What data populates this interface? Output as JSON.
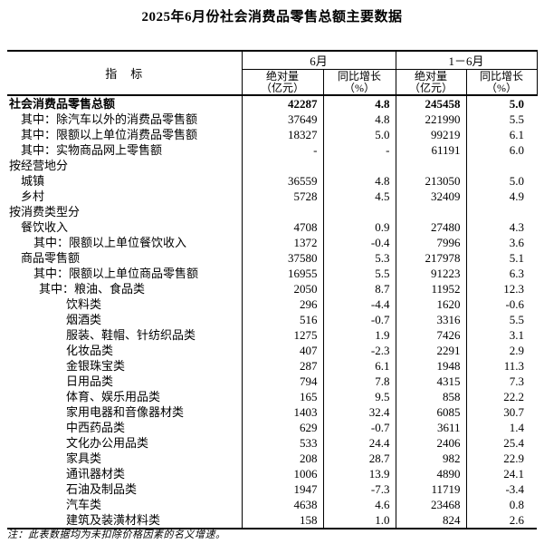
{
  "page": {
    "title": "2025年6月份社会消费品零售总额主要数据"
  },
  "table": {
    "header": {
      "indicator": "指　标",
      "group_june": "6月",
      "group_jan_june": "1－6月",
      "abs_label": "绝对量\n（亿元）",
      "yoy_label": "同比增长\n（%）"
    },
    "rows": [
      {
        "label": "社会消费品零售总额",
        "indent": 0,
        "bold": true,
        "values": [
          "42287",
          "4.8",
          "245458",
          "5.0"
        ]
      },
      {
        "label": "其中：除汽车以外的消费品零售额",
        "indent": 1,
        "bold": false,
        "values": [
          "37649",
          "4.8",
          "221990",
          "5.5"
        ]
      },
      {
        "label": "其中：限额以上单位消费品零售额",
        "indent": 1,
        "bold": false,
        "values": [
          "18327",
          "5.0",
          "99219",
          "6.1"
        ]
      },
      {
        "label": "其中：实物商品网上零售额",
        "indent": 1,
        "bold": false,
        "values": [
          "-",
          "-",
          "61191",
          "6.0"
        ]
      },
      {
        "label": "按经营地分",
        "indent": 0,
        "bold": false,
        "values": [
          "",
          "",
          "",
          ""
        ]
      },
      {
        "label": "城镇",
        "indent": 1,
        "bold": false,
        "values": [
          "36559",
          "4.8",
          "213050",
          "5.0"
        ]
      },
      {
        "label": "乡村",
        "indent": 1,
        "bold": false,
        "values": [
          "5728",
          "4.5",
          "32409",
          "4.9"
        ]
      },
      {
        "label": "按消费类型分",
        "indent": 0,
        "bold": false,
        "values": [
          "",
          "",
          "",
          ""
        ]
      },
      {
        "label": "餐饮收入",
        "indent": 1,
        "bold": false,
        "values": [
          "4708",
          "0.9",
          "27480",
          "4.3"
        ]
      },
      {
        "label": "其中：限额以上单位餐饮收入",
        "indent": 2,
        "bold": false,
        "values": [
          "1372",
          "-0.4",
          "7996",
          "3.6"
        ]
      },
      {
        "label": "商品零售额",
        "indent": 1,
        "bold": false,
        "values": [
          "37580",
          "5.3",
          "217978",
          "5.1"
        ]
      },
      {
        "label": "其中：限额以上单位商品零售额",
        "indent": 2,
        "bold": false,
        "values": [
          "16955",
          "5.5",
          "91223",
          "6.3"
        ]
      },
      {
        "label": "其中：粮油、食品类",
        "indent": 3,
        "bold": false,
        "values": [
          "2050",
          "8.7",
          "11952",
          "12.3"
        ]
      },
      {
        "label": "饮料类",
        "indent": 4,
        "bold": false,
        "values": [
          "296",
          "-4.4",
          "1620",
          "-0.6"
        ]
      },
      {
        "label": "烟酒类",
        "indent": 4,
        "bold": false,
        "values": [
          "516",
          "-0.7",
          "3316",
          "5.5"
        ]
      },
      {
        "label": "服装、鞋帽、针纺织品类",
        "indent": 4,
        "bold": false,
        "values": [
          "1275",
          "1.9",
          "7426",
          "3.1"
        ]
      },
      {
        "label": "化妆品类",
        "indent": 4,
        "bold": false,
        "values": [
          "407",
          "-2.3",
          "2291",
          "2.9"
        ]
      },
      {
        "label": "金银珠宝类",
        "indent": 4,
        "bold": false,
        "values": [
          "287",
          "6.1",
          "1948",
          "11.3"
        ]
      },
      {
        "label": "日用品类",
        "indent": 4,
        "bold": false,
        "values": [
          "794",
          "7.8",
          "4315",
          "7.3"
        ]
      },
      {
        "label": "体育、娱乐用品类",
        "indent": 4,
        "bold": false,
        "values": [
          "165",
          "9.5",
          "858",
          "22.2"
        ]
      },
      {
        "label": "家用电器和音像器材类",
        "indent": 4,
        "bold": false,
        "values": [
          "1403",
          "32.4",
          "6085",
          "30.7"
        ]
      },
      {
        "label": "中西药品类",
        "indent": 4,
        "bold": false,
        "values": [
          "629",
          "-0.7",
          "3611",
          "1.4"
        ]
      },
      {
        "label": "文化办公用品类",
        "indent": 4,
        "bold": false,
        "values": [
          "533",
          "24.4",
          "2406",
          "25.4"
        ]
      },
      {
        "label": "家具类",
        "indent": 4,
        "bold": false,
        "values": [
          "208",
          "28.7",
          "982",
          "22.9"
        ]
      },
      {
        "label": "通讯器材类",
        "indent": 4,
        "bold": false,
        "values": [
          "1006",
          "13.9",
          "4890",
          "24.1"
        ]
      },
      {
        "label": "石油及制品类",
        "indent": 4,
        "bold": false,
        "values": [
          "1947",
          "-7.3",
          "11719",
          "-3.4"
        ]
      },
      {
        "label": "汽车类",
        "indent": 4,
        "bold": false,
        "values": [
          "4638",
          "4.6",
          "23468",
          "0.8"
        ]
      },
      {
        "label": "建筑及装潢材料类",
        "indent": 4,
        "bold": false,
        "values": [
          "158",
          "1.0",
          "824",
          "2.6"
        ]
      }
    ]
  },
  "footnote": "注：此表数据均为未扣除价格因素的名义增速。"
}
